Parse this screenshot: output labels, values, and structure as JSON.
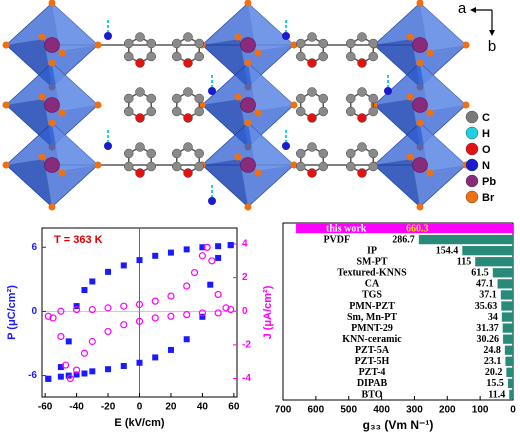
{
  "structure": {
    "axes": [
      "a",
      "b"
    ],
    "legend": [
      {
        "label": "C",
        "color": "#7a7a7a"
      },
      {
        "label": "H",
        "color": "#19d3e0"
      },
      {
        "label": "O",
        "color": "#e31212"
      },
      {
        "label": "N",
        "color": "#1a1ad0"
      },
      {
        "label": "Pb",
        "color": "#8a2a7a"
      },
      {
        "label": "Br",
        "color": "#f07010"
      }
    ]
  },
  "chart_data": [
    {
      "type": "scatter",
      "annotation": "T = 363 K",
      "xlabel": "E (kV/cm)",
      "ylabel": "P (μC/cm²)",
      "y2label": "J (μA/cm²)",
      "xlim": [
        -62,
        62
      ],
      "xticks": [
        -60,
        -40,
        -20,
        0,
        20,
        40,
        60
      ],
      "ylim": [
        -8,
        7.8
      ],
      "yticks": [
        -6,
        0,
        6
      ],
      "y2lim": [
        -5.1,
        4.95
      ],
      "y2ticks": [
        -4,
        -2,
        0,
        2,
        4
      ],
      "series": [
        {
          "color": "#1a1aff",
          "marker": "square",
          "x": [
            -58,
            -50,
            -45,
            -40,
            -35,
            -30,
            -20,
            -10,
            0,
            10,
            20,
            30,
            40,
            50,
            58
          ],
          "values": [
            -6.3,
            -5.2,
            -2.8,
            0.5,
            2.0,
            2.8,
            3.7,
            4.3,
            4.8,
            5.2,
            5.5,
            5.8,
            6.0,
            6.1,
            6.2
          ]
        },
        {
          "color": "#1a1aff",
          "marker": "square",
          "x": [
            -58,
            -50,
            -45,
            -40,
            -35,
            -30,
            -20,
            -10,
            0,
            10,
            20,
            30,
            40,
            45,
            50,
            58
          ],
          "values": [
            -6.3,
            -6.1,
            -6.0,
            -5.9,
            -5.8,
            -5.6,
            -5.4,
            -5.1,
            -4.8,
            -4.3,
            -3.6,
            -2.6,
            -0.5,
            2.5,
            5.0,
            6.2
          ]
        },
        {
          "color": "#ff00ff",
          "marker": "circle",
          "axis": "y2",
          "x": [
            -58,
            -50,
            -40,
            -30,
            -20,
            -10,
            0,
            10,
            20,
            30,
            35,
            40,
            43,
            46,
            50,
            55
          ],
          "values": [
            -0.3,
            0,
            0.1,
            0.1,
            0.2,
            0.3,
            0.4,
            0.6,
            0.9,
            1.5,
            2.3,
            3.3,
            3.8,
            3.0,
            1.0,
            0.2
          ]
        },
        {
          "color": "#ff00ff",
          "marker": "circle",
          "axis": "y2",
          "x": [
            58,
            50,
            40,
            30,
            20,
            10,
            0,
            -10,
            -20,
            -30,
            -35,
            -40,
            -44,
            -47,
            -50,
            -55
          ],
          "values": [
            0.1,
            -0.1,
            -0.1,
            -0.2,
            -0.3,
            -0.4,
            -0.6,
            -0.8,
            -1.2,
            -1.8,
            -2.5,
            -3.5,
            -4.0,
            -3.2,
            -1.5,
            -0.4
          ]
        }
      ]
    },
    {
      "type": "bar",
      "orientation": "horizontal",
      "x_reversed": true,
      "xlabel": "g₃₃ (Vm N⁻¹)",
      "xlim": [
        0,
        700
      ],
      "xticks": [
        0,
        100,
        200,
        300,
        400,
        500,
        600,
        700
      ],
      "categories": [
        "this work",
        "PVDF",
        "IP",
        "SM-PT",
        "Textured-KNNS",
        "CA",
        "TGS",
        "PMN-PZT",
        "Sm, Mn-PT",
        "PMNT-29",
        "KNN-ceramic",
        "PZT-5A",
        "PZT-5H",
        "PZT-4",
        "DIPAB",
        "BTO"
      ],
      "values": [
        660.3,
        286.7,
        154.4,
        115,
        61.5,
        47.1,
        37.1,
        35.63,
        34,
        31.37,
        30.26,
        24.8,
        23.1,
        20.2,
        15.5,
        11.4
      ],
      "colors": [
        "#ff00ff",
        "#2a8a7a",
        "#2a8a7a",
        "#2a8a7a",
        "#2a8a7a",
        "#2a8a7a",
        "#2a8a7a",
        "#2a8a7a",
        "#2a8a7a",
        "#2a8a7a",
        "#2a8a7a",
        "#2a8a7a",
        "#2a8a7a",
        "#2a8a7a",
        "#2a8a7a",
        "#2a8a7a"
      ]
    }
  ]
}
